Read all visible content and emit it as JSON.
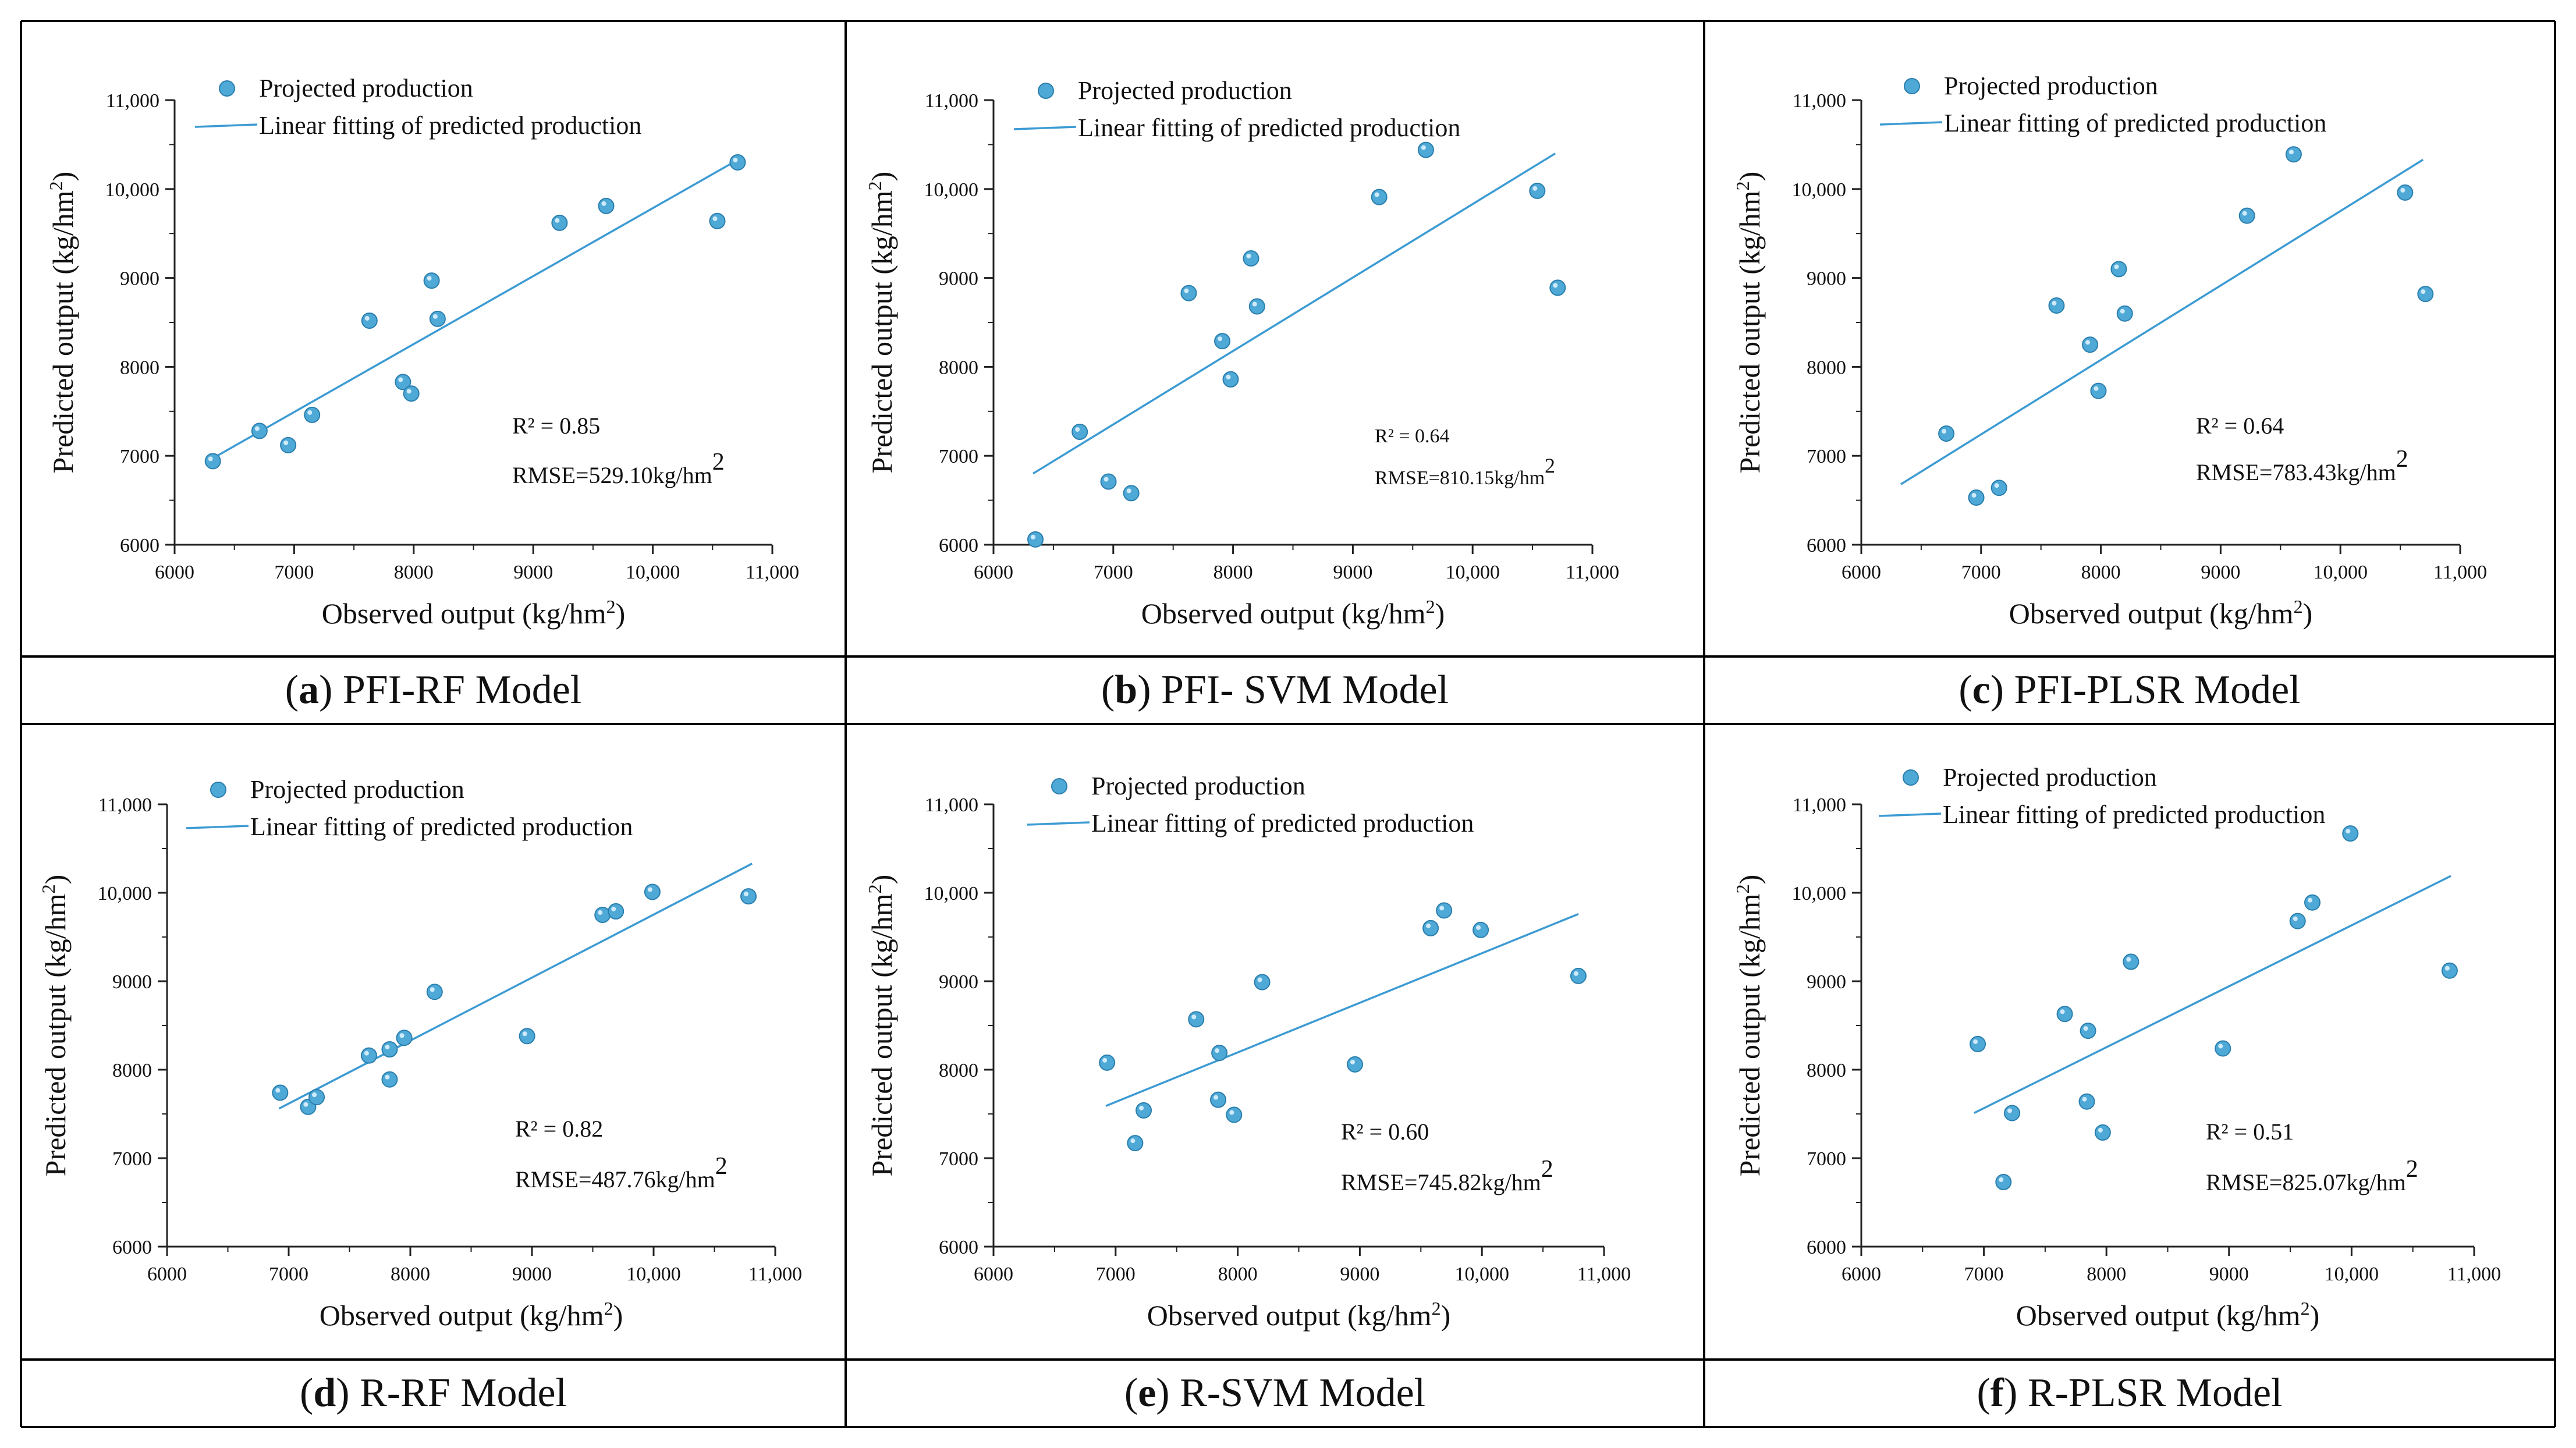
{
  "colors": {
    "marker": "#4fa9d6",
    "marker_stroke": "#2a7fae",
    "fit_line": "#3d9bd3",
    "border": "#000000"
  },
  "panels": [
    {
      "letter": "a",
      "caption": "PFI-RF Model",
      "chart_data": {
        "type": "scatter",
        "legend": [
          "Projected production",
          "Linear fitting of predicted production"
        ],
        "xlabel": "Observed output (kg/hm",
        "xlabel_sup": "2",
        "xlabel_end": ")",
        "ylabel": "Predicted output (kg/hm",
        "ylabel_sup": "2",
        "ylabel_end": ")",
        "xlim": [
          6000,
          11000
        ],
        "ylim": [
          6000,
          11000
        ],
        "xticks": [
          6000,
          7000,
          8000,
          9000,
          10000,
          11000
        ],
        "xtick_labels": [
          "6000",
          "7000",
          "8000",
          "9000",
          "10,000",
          "11,000"
        ],
        "yticks": [
          6000,
          7000,
          8000,
          9000,
          10000,
          11000
        ],
        "ytick_labels": [
          "6000",
          "7000",
          "8000",
          "9000",
          "10,000",
          "11,000"
        ],
        "r2": "R² = 0.85",
        "rmse": "RMSE=529.10kg/hm",
        "rmse_sup": "2",
        "points": [
          [
            6320,
            6940
          ],
          [
            6710,
            7280
          ],
          [
            6950,
            7120
          ],
          [
            7150,
            7460
          ],
          [
            7630,
            8520
          ],
          [
            7910,
            7830
          ],
          [
            7980,
            7700
          ],
          [
            8150,
            8970
          ],
          [
            8200,
            8540
          ],
          [
            9220,
            9620
          ],
          [
            9610,
            9810
          ],
          [
            10540,
            9640
          ],
          [
            10710,
            10300
          ]
        ],
        "fit": [
          [
            6330,
            6980
          ],
          [
            10700,
            10320
          ]
        ]
      }
    },
    {
      "letter": "b",
      "caption": "PFI- SVM Model",
      "chart_data": {
        "type": "scatter",
        "legend": [
          "Projected production",
          "Linear fitting of predicted production"
        ],
        "xlabel": "Observed output (kg/hm",
        "xlabel_sup": "2",
        "xlabel_end": ")",
        "ylabel": "Predicted output (kg/hm",
        "ylabel_sup": "2",
        "ylabel_end": ")",
        "xlim": [
          6000,
          11000
        ],
        "ylim": [
          6000,
          11000
        ],
        "xticks": [
          6000,
          7000,
          8000,
          9000,
          10000,
          11000
        ],
        "xtick_labels": [
          "6000",
          "7000",
          "8000",
          "9000",
          "10,000",
          "11,000"
        ],
        "yticks": [
          6000,
          7000,
          8000,
          9000,
          10000,
          11000
        ],
        "ytick_labels": [
          "6000",
          "7000",
          "8000",
          "9000",
          "10,000",
          "11,000"
        ],
        "r2": "R² = 0.64",
        "rmse": "RMSE=810.15kg/hm",
        "rmse_sup": "2",
        "points": [
          [
            6350,
            6060
          ],
          [
            6720,
            7270
          ],
          [
            6960,
            6710
          ],
          [
            7150,
            6580
          ],
          [
            7630,
            8830
          ],
          [
            7910,
            8290
          ],
          [
            7980,
            7860
          ],
          [
            8150,
            9220
          ],
          [
            8200,
            8680
          ],
          [
            9220,
            9910
          ],
          [
            9610,
            10440
          ],
          [
            10540,
            9980
          ],
          [
            10710,
            8890
          ]
        ],
        "fit": [
          [
            6330,
            6800
          ],
          [
            10690,
            10400
          ]
        ]
      }
    },
    {
      "letter": "c",
      "caption": "PFI-PLSR Model",
      "chart_data": {
        "type": "scatter",
        "legend": [
          "Projected production",
          "Linear fitting of predicted production"
        ],
        "xlabel": "Observed output (kg/hm",
        "xlabel_sup": "2",
        "xlabel_end": ")",
        "ylabel": "Predicted output (kg/hm",
        "ylabel_sup": "2",
        "ylabel_end": ")",
        "xlim": [
          6000,
          11000
        ],
        "ylim": [
          6000,
          11000
        ],
        "xticks": [
          6000,
          7000,
          8000,
          9000,
          10000,
          11000
        ],
        "xtick_labels": [
          "6000",
          "7000",
          "8000",
          "9000",
          "10,000",
          "11,000"
        ],
        "yticks": [
          6000,
          7000,
          8000,
          9000,
          10000,
          11000
        ],
        "ytick_labels": [
          "6000",
          "7000",
          "8000",
          "9000",
          "10,000",
          "11,000"
        ],
        "r2": "R² = 0.64",
        "rmse": "RMSE=783.43kg/hm",
        "rmse_sup": "2",
        "points": [
          [
            6710,
            7250
          ],
          [
            6960,
            6530
          ],
          [
            7150,
            6640
          ],
          [
            7630,
            8690
          ],
          [
            7910,
            8250
          ],
          [
            7980,
            7730
          ],
          [
            8150,
            9100
          ],
          [
            8200,
            8600
          ],
          [
            9220,
            9700
          ],
          [
            9610,
            10390
          ],
          [
            10540,
            9960
          ],
          [
            10710,
            8820
          ]
        ],
        "fit": [
          [
            6330,
            6680
          ],
          [
            10690,
            10330
          ]
        ]
      }
    },
    {
      "letter": "d",
      "caption": "R-RF Model",
      "chart_data": {
        "type": "scatter",
        "legend": [
          "Projected production",
          "Linear fitting of predicted production"
        ],
        "xlabel": "Observed output (kg/hm",
        "xlabel_sup": "2",
        "xlabel_end": ")",
        "ylabel": "Predicted output (kg/hm",
        "ylabel_sup": "2",
        "ylabel_end": ")",
        "xlim": [
          6000,
          11000
        ],
        "ylim": [
          6000,
          11000
        ],
        "xticks": [
          6000,
          7000,
          8000,
          9000,
          10000,
          11000
        ],
        "xtick_labels": [
          "6000",
          "7000",
          "8000",
          "9000",
          "10,000",
          "11,000"
        ],
        "yticks": [
          6000,
          7000,
          8000,
          9000,
          10000,
          11000
        ],
        "ytick_labels": [
          "6000",
          "7000",
          "8000",
          "9000",
          "10,000",
          "11,000"
        ],
        "r2": "R² = 0.82",
        "rmse": "RMSE=487.76kg/hm",
        "rmse_sup": "2",
        "points": [
          [
            6930,
            7740
          ],
          [
            7160,
            7580
          ],
          [
            7230,
            7690
          ],
          [
            7660,
            8160
          ],
          [
            7830,
            7890
          ],
          [
            7830,
            8230
          ],
          [
            7950,
            8360
          ],
          [
            8200,
            8880
          ],
          [
            8960,
            8380
          ],
          [
            9580,
            9750
          ],
          [
            9690,
            9790
          ],
          [
            9990,
            10010
          ],
          [
            10780,
            9960
          ]
        ],
        "fit": [
          [
            6920,
            7560
          ],
          [
            10810,
            10330
          ]
        ]
      }
    },
    {
      "letter": "e",
      "caption": "R-SVM Model",
      "chart_data": {
        "type": "scatter",
        "legend": [
          "Projected production",
          "Linear fitting of predicted production"
        ],
        "xlabel": "Observed output (kg/hm",
        "xlabel_sup": "2",
        "xlabel_end": ")",
        "ylabel": "Predicted output (kg/hm",
        "ylabel_sup": "2",
        "ylabel_end": ")",
        "xlim": [
          6000,
          11000
        ],
        "ylim": [
          6000,
          11000
        ],
        "xticks": [
          6000,
          7000,
          8000,
          9000,
          10000,
          11000
        ],
        "xtick_labels": [
          "6000",
          "7000",
          "8000",
          "9000",
          "10,000",
          "11,000"
        ],
        "yticks": [
          6000,
          7000,
          8000,
          9000,
          10000,
          11000
        ],
        "ytick_labels": [
          "6000",
          "7000",
          "8000",
          "9000",
          "10,000",
          "11,000"
        ],
        "r2": "R² = 0.60",
        "rmse": "RMSE=745.82kg/hm",
        "rmse_sup": "2",
        "points": [
          [
            6930,
            8080
          ],
          [
            7160,
            7170
          ],
          [
            7230,
            7540
          ],
          [
            7660,
            8570
          ],
          [
            7840,
            7660
          ],
          [
            7850,
            8190
          ],
          [
            7970,
            7490
          ],
          [
            8200,
            8990
          ],
          [
            8960,
            8060
          ],
          [
            9580,
            9600
          ],
          [
            9690,
            9800
          ],
          [
            9990,
            9580
          ],
          [
            10790,
            9060
          ]
        ],
        "fit": [
          [
            6920,
            7590
          ],
          [
            10790,
            9760
          ]
        ]
      }
    },
    {
      "letter": "f",
      "caption": "R-PLSR Model",
      "chart_data": {
        "type": "scatter",
        "legend": [
          "Projected production",
          "Linear fitting of predicted production"
        ],
        "xlabel": "Observed output (kg/hm",
        "xlabel_sup": "2",
        "xlabel_end": ")",
        "ylabel": "Predicted output (kg/hm",
        "ylabel_sup": "2",
        "ylabel_end": ")",
        "xlim": [
          6000,
          11000
        ],
        "ylim": [
          6000,
          11000
        ],
        "xticks": [
          6000,
          7000,
          8000,
          9000,
          10000,
          11000
        ],
        "xtick_labels": [
          "6000",
          "7000",
          "8000",
          "9000",
          "10,000",
          "11,000"
        ],
        "yticks": [
          6000,
          7000,
          8000,
          9000,
          10000,
          11000
        ],
        "ytick_labels": [
          "6000",
          "7000",
          "8000",
          "9000",
          "10,000",
          "11,000"
        ],
        "r2": "R² = 0.51",
        "rmse": "RMSE=825.07kg/hm",
        "rmse_sup": "2",
        "points": [
          [
            6950,
            8290
          ],
          [
            7160,
            6730
          ],
          [
            7230,
            7510
          ],
          [
            7660,
            8630
          ],
          [
            7840,
            7640
          ],
          [
            7850,
            8440
          ],
          [
            7970,
            7290
          ],
          [
            8200,
            9220
          ],
          [
            8950,
            8240
          ],
          [
            9560,
            9680
          ],
          [
            9680,
            9890
          ],
          [
            9990,
            10670
          ],
          [
            10800,
            9120
          ]
        ],
        "fit": [
          [
            6920,
            7510
          ],
          [
            10810,
            10190
          ]
        ]
      }
    }
  ]
}
